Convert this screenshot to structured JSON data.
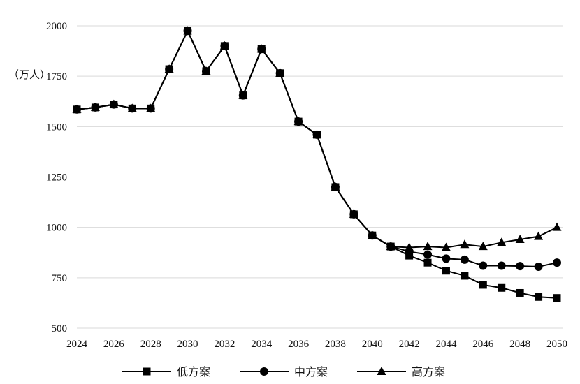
{
  "chart_data": {
    "type": "line",
    "unit_label": "（万人）",
    "x": [
      2024,
      2025,
      2026,
      2027,
      2028,
      2029,
      2030,
      2031,
      2032,
      2033,
      2034,
      2035,
      2036,
      2037,
      2038,
      2039,
      2040,
      2041,
      2042,
      2043,
      2044,
      2045,
      2046,
      2047,
      2048,
      2049,
      2050
    ],
    "x_tick_labels": [
      "2024",
      "2026",
      "2028",
      "2030",
      "2032",
      "2034",
      "2036",
      "2038",
      "2040",
      "2042",
      "2044",
      "2046",
      "2048",
      "2050"
    ],
    "y_tick_labels": [
      "500",
      "750",
      "1000",
      "1250",
      "1500",
      "1750",
      "2000"
    ],
    "ylim": [
      500,
      2000
    ],
    "xlim": [
      2024,
      2050
    ],
    "grid": "horizontal",
    "legend_position": "bottom",
    "series": [
      {
        "name": "低方案",
        "marker": "square",
        "values": [
          1585,
          1595,
          1610,
          1590,
          1590,
          1785,
          1975,
          1775,
          1900,
          1655,
          1885,
          1765,
          1525,
          1460,
          1200,
          1065,
          960,
          905,
          860,
          825,
          785,
          760,
          715,
          700,
          675,
          655,
          650
        ]
      },
      {
        "name": "中方案",
        "marker": "circle",
        "values": [
          1585,
          1595,
          1610,
          1590,
          1590,
          1785,
          1975,
          1775,
          1900,
          1655,
          1885,
          1765,
          1525,
          1460,
          1200,
          1065,
          960,
          905,
          880,
          865,
          845,
          840,
          810,
          810,
          808,
          805,
          825
        ]
      },
      {
        "name": "高方案",
        "marker": "triangle",
        "values": [
          1585,
          1595,
          1610,
          1590,
          1590,
          1785,
          1975,
          1775,
          1900,
          1655,
          1885,
          1765,
          1525,
          1460,
          1200,
          1065,
          960,
          905,
          900,
          905,
          900,
          915,
          905,
          925,
          940,
          955,
          1000
        ]
      }
    ]
  }
}
